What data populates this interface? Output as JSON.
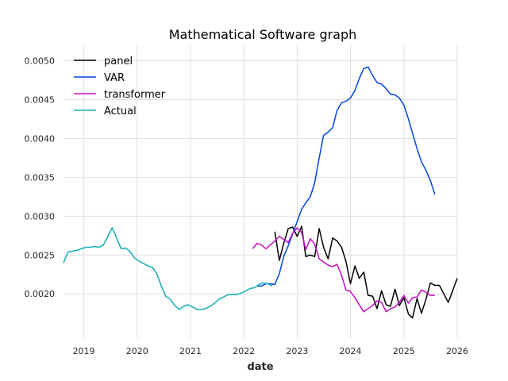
{
  "chart_data": {
    "type": "line",
    "title": "Mathematical Software graph",
    "xlabel": "date",
    "ylabel": "",
    "xlim": [
      "2018-08-15",
      "2026-01-01"
    ],
    "ylim": [
      0.00143,
      0.0052
    ],
    "x_ticks": [
      "2019",
      "2020",
      "2021",
      "2022",
      "2023",
      "2024",
      "2025",
      "2026"
    ],
    "y_ticks": [
      "0.0020",
      "0.0025",
      "0.0030",
      "0.0035",
      "0.0040",
      "0.0045",
      "0.0050"
    ],
    "grid": true,
    "legend_position": "top-left",
    "series": [
      {
        "name": "panel",
        "color": "#000000",
        "points": [
          [
            "2022-08-01",
            0.0028
          ],
          [
            "2022-09-01",
            0.00243
          ],
          [
            "2022-10-01",
            0.00265
          ],
          [
            "2022-11-01",
            0.00284
          ],
          [
            "2022-12-01",
            0.00286
          ],
          [
            "2023-01-01",
            0.00274
          ],
          [
            "2023-02-01",
            0.00287
          ],
          [
            "2023-03-01",
            0.00248
          ],
          [
            "2023-04-01",
            0.0025
          ],
          [
            "2023-05-01",
            0.00248
          ],
          [
            "2023-06-01",
            0.00284
          ],
          [
            "2023-07-01",
            0.0026
          ],
          [
            "2023-08-01",
            0.00245
          ],
          [
            "2023-09-01",
            0.00272
          ],
          [
            "2023-10-01",
            0.00268
          ],
          [
            "2023-11-01",
            0.0026
          ],
          [
            "2023-12-01",
            0.00242
          ],
          [
            "2024-01-01",
            0.00213
          ],
          [
            "2024-02-01",
            0.00236
          ],
          [
            "2024-03-01",
            0.0022
          ],
          [
            "2024-04-01",
            0.00228
          ],
          [
            "2024-05-01",
            0.00198
          ],
          [
            "2024-06-01",
            0.00197
          ],
          [
            "2024-07-01",
            0.00181
          ],
          [
            "2024-08-01",
            0.00204
          ],
          [
            "2024-09-01",
            0.00186
          ],
          [
            "2024-10-01",
            0.00184
          ],
          [
            "2024-11-01",
            0.00206
          ],
          [
            "2024-12-01",
            0.00185
          ],
          [
            "2025-01-01",
            0.00195
          ],
          [
            "2025-02-01",
            0.00174
          ],
          [
            "2025-03-01",
            0.00169
          ],
          [
            "2025-04-01",
            0.00194
          ],
          [
            "2025-05-01",
            0.00175
          ],
          [
            "2025-06-01",
            0.00193
          ],
          [
            "2025-07-01",
            0.00214
          ],
          [
            "2025-08-01",
            0.00211
          ],
          [
            "2025-09-01",
            0.00211
          ],
          [
            "2025-10-01",
            0.002
          ],
          [
            "2025-11-01",
            0.00189
          ],
          [
            "2025-12-01",
            0.00204
          ],
          [
            "2026-01-01",
            0.0022
          ]
        ]
      },
      {
        "name": "VAR",
        "color": "#0343df",
        "points": [
          [
            "2022-04-01",
            0.0021
          ],
          [
            "2022-05-01",
            0.0021
          ],
          [
            "2022-06-01",
            0.00213
          ],
          [
            "2022-07-01",
            0.00213
          ],
          [
            "2022-08-01",
            0.00212
          ],
          [
            "2022-09-01",
            0.00226
          ],
          [
            "2022-10-01",
            0.00248
          ],
          [
            "2022-11-01",
            0.00262
          ],
          [
            "2022-12-01",
            0.00277
          ],
          [
            "2023-01-01",
            0.00293
          ],
          [
            "2023-02-01",
            0.00309
          ],
          [
            "2023-03-01",
            0.00317
          ],
          [
            "2023-04-01",
            0.00325
          ],
          [
            "2023-05-01",
            0.00343
          ],
          [
            "2023-06-01",
            0.00375
          ],
          [
            "2023-07-01",
            0.00404
          ],
          [
            "2023-08-01",
            0.00408
          ],
          [
            "2023-09-01",
            0.00414
          ],
          [
            "2023-10-01",
            0.00436
          ],
          [
            "2023-11-01",
            0.00446
          ],
          [
            "2023-12-01",
            0.00448
          ],
          [
            "2024-01-01",
            0.00452
          ],
          [
            "2024-02-01",
            0.00462
          ],
          [
            "2024-03-01",
            0.00477
          ],
          [
            "2024-04-01",
            0.0049
          ],
          [
            "2024-05-01",
            0.00492
          ],
          [
            "2024-06-01",
            0.00481
          ],
          [
            "2024-07-01",
            0.00472
          ],
          [
            "2024-08-01",
            0.0047
          ],
          [
            "2024-09-01",
            0.00464
          ],
          [
            "2024-10-01",
            0.00457
          ],
          [
            "2024-11-01",
            0.00456
          ],
          [
            "2024-12-01",
            0.00452
          ],
          [
            "2025-01-01",
            0.00443
          ],
          [
            "2025-02-01",
            0.00425
          ],
          [
            "2025-03-01",
            0.00407
          ],
          [
            "2025-04-01",
            0.00387
          ],
          [
            "2025-05-01",
            0.0037
          ],
          [
            "2025-06-01",
            0.00359
          ],
          [
            "2025-07-01",
            0.00346
          ],
          [
            "2025-08-01",
            0.00328
          ]
        ]
      },
      {
        "name": "transformer",
        "color": "#c20dc2",
        "points": [
          [
            "2022-03-01",
            0.00258
          ],
          [
            "2022-04-01",
            0.00265
          ],
          [
            "2022-05-01",
            0.00263
          ],
          [
            "2022-06-01",
            0.00258
          ],
          [
            "2022-07-01",
            0.00263
          ],
          [
            "2022-08-01",
            0.00268
          ],
          [
            "2022-09-01",
            0.00274
          ],
          [
            "2022-10-01",
            0.0027
          ],
          [
            "2022-11-01",
            0.00266
          ],
          [
            "2022-12-01",
            0.00278
          ],
          [
            "2023-01-01",
            0.00285
          ],
          [
            "2023-02-01",
            0.00279
          ],
          [
            "2023-03-01",
            0.00257
          ],
          [
            "2023-04-01",
            0.00271
          ],
          [
            "2023-05-01",
            0.00264
          ],
          [
            "2023-06-01",
            0.00245
          ],
          [
            "2023-07-01",
            0.00241
          ],
          [
            "2023-08-01",
            0.00237
          ],
          [
            "2023-09-01",
            0.00235
          ],
          [
            "2023-10-01",
            0.00238
          ],
          [
            "2023-11-01",
            0.00224
          ],
          [
            "2023-12-01",
            0.00205
          ],
          [
            "2024-01-01",
            0.00203
          ],
          [
            "2024-02-01",
            0.00195
          ],
          [
            "2024-03-01",
            0.00186
          ],
          [
            "2024-04-01",
            0.00177
          ],
          [
            "2024-05-01",
            0.00181
          ],
          [
            "2024-06-01",
            0.00185
          ],
          [
            "2024-07-01",
            0.00191
          ],
          [
            "2024-08-01",
            0.00189
          ],
          [
            "2024-09-01",
            0.00177
          ],
          [
            "2024-10-01",
            0.00181
          ],
          [
            "2024-11-01",
            0.00183
          ],
          [
            "2024-12-01",
            0.00189
          ],
          [
            "2025-01-01",
            0.00198
          ],
          [
            "2025-02-01",
            0.00188
          ],
          [
            "2025-03-01",
            0.00195
          ],
          [
            "2025-04-01",
            0.00196
          ],
          [
            "2025-05-01",
            0.00205
          ],
          [
            "2025-06-01",
            0.00202
          ],
          [
            "2025-07-01",
            0.00198
          ],
          [
            "2025-08-01",
            0.00198
          ]
        ]
      },
      {
        "name": "Actual",
        "color": "#13aeb8",
        "points": [
          [
            "2018-08-15",
            0.0024
          ],
          [
            "2018-09-15",
            0.00254
          ],
          [
            "2018-10-15",
            0.00255
          ],
          [
            "2018-11-15",
            0.00256
          ],
          [
            "2018-12-15",
            0.00258
          ],
          [
            "2019-01-15",
            0.0026
          ],
          [
            "2019-02-15",
            0.0026
          ],
          [
            "2019-03-15",
            0.00261
          ],
          [
            "2019-04-15",
            0.0026
          ],
          [
            "2019-05-15",
            0.00263
          ],
          [
            "2019-06-15",
            0.00274
          ],
          [
            "2019-07-15",
            0.00285
          ],
          [
            "2019-08-15",
            0.00271
          ],
          [
            "2019-09-15",
            0.00258
          ],
          [
            "2019-10-15",
            0.00259
          ],
          [
            "2019-11-15",
            0.00254
          ],
          [
            "2019-12-15",
            0.00246
          ],
          [
            "2020-01-15",
            0.00242
          ],
          [
            "2020-02-15",
            0.00239
          ],
          [
            "2020-03-15",
            0.00236
          ],
          [
            "2020-04-15",
            0.00234
          ],
          [
            "2020-05-15",
            0.00226
          ],
          [
            "2020-06-15",
            0.0021
          ],
          [
            "2020-07-15",
            0.00197
          ],
          [
            "2020-08-15",
            0.00193
          ],
          [
            "2020-09-15",
            0.00185
          ],
          [
            "2020-10-15",
            0.0018
          ],
          [
            "2020-11-15",
            0.00184
          ],
          [
            "2020-12-15",
            0.00186
          ],
          [
            "2021-01-15",
            0.00183
          ],
          [
            "2021-02-15",
            0.0018
          ],
          [
            "2021-03-15",
            0.0018
          ],
          [
            "2021-04-15",
            0.00181
          ],
          [
            "2021-05-15",
            0.00184
          ],
          [
            "2021-06-15",
            0.00188
          ],
          [
            "2021-07-15",
            0.00193
          ],
          [
            "2021-08-15",
            0.00196
          ],
          [
            "2021-09-15",
            0.00199
          ],
          [
            "2021-10-15",
            0.00199
          ],
          [
            "2021-11-15",
            0.00199
          ],
          [
            "2021-12-15",
            0.00201
          ],
          [
            "2022-01-15",
            0.00204
          ],
          [
            "2022-02-15",
            0.00207
          ],
          [
            "2022-03-15",
            0.00208
          ],
          [
            "2022-04-15",
            0.00212
          ],
          [
            "2022-05-15",
            0.00214
          ],
          [
            "2022-06-15",
            0.00213
          ],
          [
            "2022-07-15",
            0.0021
          ]
        ]
      }
    ]
  }
}
